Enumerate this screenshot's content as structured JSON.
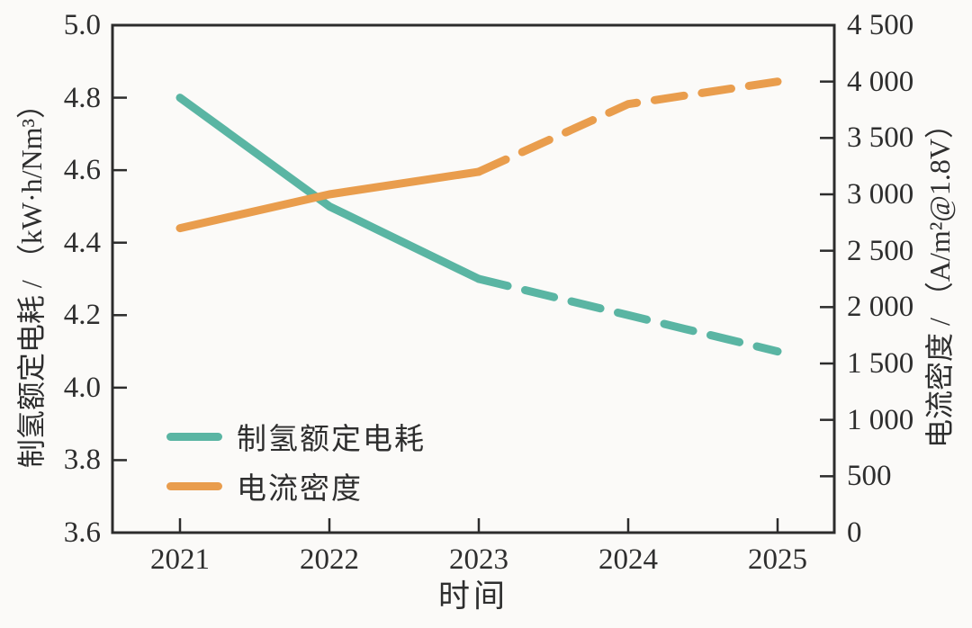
{
  "chart_data": {
    "type": "line",
    "grid": false,
    "legend_position": "inside-lower-left",
    "x_axis": {
      "label": "时间",
      "tick_values": [
        2021,
        2022,
        2023,
        2024,
        2025
      ],
      "tick_labels": [
        "2021",
        "2022",
        "2023",
        "2024",
        "2025"
      ]
    },
    "left_axis": {
      "label": "制氢额定电耗 / （kW·h/Nm³）",
      "min": 3.6,
      "max": 5.0,
      "ticks": [
        {
          "value": 5.0,
          "label": "5.0"
        },
        {
          "value": 4.8,
          "label": "4.8"
        },
        {
          "value": 4.6,
          "label": "4.6"
        },
        {
          "value": 4.4,
          "label": "4.4"
        },
        {
          "value": 4.2,
          "label": "4.2"
        },
        {
          "value": 4.0,
          "label": "4.0"
        },
        {
          "value": 3.8,
          "label": "3.8"
        },
        {
          "value": 3.6,
          "label": "3.6"
        }
      ]
    },
    "right_axis": {
      "label": "电流密度 / （A/m²@1.8V）",
      "min": 0,
      "max": 4500,
      "ticks": [
        {
          "value": 4500,
          "label": "4 500"
        },
        {
          "value": 4000,
          "label": "4 000"
        },
        {
          "value": 3500,
          "label": "3 500"
        },
        {
          "value": 3000,
          "label": "3 000"
        },
        {
          "value": 2500,
          "label": "2 500"
        },
        {
          "value": 2000,
          "label": "2 000"
        },
        {
          "value": 1500,
          "label": "1 500"
        },
        {
          "value": 1000,
          "label": "1 000"
        },
        {
          "value": 500,
          "label": "500"
        },
        {
          "value": 0,
          "label": "0"
        }
      ]
    },
    "series": [
      {
        "id": "power-consumption",
        "name": "制氢额定电耗",
        "axis": "left",
        "color": "#5ab5a3",
        "x": [
          2021,
          2022,
          2023,
          2024,
          2025
        ],
        "values": [
          4.8,
          4.5,
          4.3,
          4.2,
          4.1
        ],
        "solid_until_x": 2023,
        "style_note": "solid 2021-2023, dashed projection 2023-2025"
      },
      {
        "id": "current-density",
        "name": "电流密度",
        "axis": "right",
        "color": "#e99d4d",
        "x": [
          2021,
          2022,
          2023,
          2024,
          2025
        ],
        "values": [
          2700,
          3000,
          3200,
          3800,
          4000
        ],
        "solid_until_x": 2023,
        "style_note": "solid 2021-2023, dashed projection 2023-2025"
      }
    ]
  },
  "colors": {
    "teal_series": "#5ab5a3",
    "orange_series": "#e99d4d",
    "axis": "#2c2c2c",
    "background": "#fbfaf8"
  }
}
